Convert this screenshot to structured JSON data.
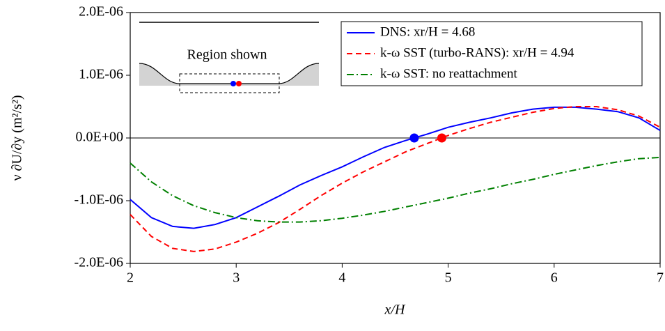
{
  "chart_data": {
    "type": "line",
    "x_label": "x/H",
    "y_label": "ν ∂U/∂y (m²/s²)",
    "x": [
      2.0,
      2.2,
      2.4,
      2.6,
      2.8,
      3.0,
      3.2,
      3.4,
      3.6,
      3.8,
      4.0,
      4.2,
      4.4,
      4.6,
      4.8,
      5.0,
      5.2,
      5.4,
      5.6,
      5.8,
      6.0,
      6.2,
      6.4,
      6.6,
      6.8,
      7.0
    ],
    "series": [
      {
        "name": "DNS: xr/H = 4.68",
        "color": "#0000ff",
        "dash": "solid",
        "values": [
          -9.8e-07,
          -1.27e-06,
          -1.41e-06,
          -1.44e-06,
          -1.38e-06,
          -1.27e-06,
          -1.1e-06,
          -9.3e-07,
          -7.5e-07,
          -6e-07,
          -4.6e-07,
          -3e-07,
          -1.5e-07,
          -4e-08,
          6e-08,
          1.7e-07,
          2.5e-07,
          3.2e-07,
          4e-07,
          4.6e-07,
          4.9e-07,
          4.9e-07,
          4.6e-07,
          4.2e-07,
          3.2e-07,
          1.2e-07
        ]
      },
      {
        "name": "k-ω SST (turbo-RANS): xr/H = 4.94",
        "color": "#ff0000",
        "dash": "dashed",
        "values": [
          -1.22e-06,
          -1.57e-06,
          -1.76e-06,
          -1.81e-06,
          -1.77e-06,
          -1.66e-06,
          -1.52e-06,
          -1.35e-06,
          -1.14e-06,
          -9.2e-07,
          -7.2e-07,
          -5.4e-07,
          -3.8e-07,
          -2.2e-07,
          -9e-08,
          4e-08,
          1.5e-07,
          2.5e-07,
          3.3e-07,
          4.1e-07,
          4.7e-07,
          5e-07,
          5e-07,
          4.5e-07,
          3.5e-07,
          1.7e-07
        ]
      },
      {
        "name": "k-ω SST: no reattachment",
        "color": "#008000",
        "dash": "dashdot",
        "values": [
          -4e-07,
          -7e-07,
          -9.2e-07,
          -1.08e-06,
          -1.19e-06,
          -1.27e-06,
          -1.32e-06,
          -1.34e-06,
          -1.34e-06,
          -1.32e-06,
          -1.28e-06,
          -1.23e-06,
          -1.17e-06,
          -1.1e-06,
          -1.03e-06,
          -9.6e-07,
          -8.8e-07,
          -8.1e-07,
          -7.3e-07,
          -6.6e-07,
          -5.8e-07,
          -5.1e-07,
          -4.4e-07,
          -3.8e-07,
          -3.3e-07,
          -3.1e-07
        ]
      }
    ],
    "markers": [
      {
        "x": 4.68,
        "y": 0,
        "color": "#0000ff"
      },
      {
        "x": 4.94,
        "y": 0,
        "color": "#ff0000"
      }
    ],
    "xlim": [
      2,
      7
    ],
    "xticks": [
      2,
      3,
      4,
      5,
      6,
      7
    ],
    "ylim": [
      -2e-06,
      2e-06
    ],
    "yticks": [
      {
        "value": -2e-06,
        "label": "-2.0E-06"
      },
      {
        "value": -1e-06,
        "label": "-1.0E-06"
      },
      {
        "value": 0,
        "label": "0.0E+00"
      },
      {
        "value": 1e-06,
        "label": "1.0E-06"
      },
      {
        "value": 2e-06,
        "label": "2.0E-06"
      }
    ],
    "zero_line": true,
    "legend": "upper right",
    "inset_label": "Region shown"
  }
}
